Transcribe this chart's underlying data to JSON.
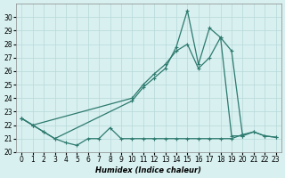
{
  "xlabel": "Humidex (Indice chaleur)",
  "ylim": [
    20,
    31
  ],
  "xlim": [
    -0.5,
    23.5
  ],
  "yticks": [
    20,
    21,
    22,
    23,
    24,
    25,
    26,
    27,
    28,
    29,
    30
  ],
  "xticks": [
    0,
    1,
    2,
    3,
    4,
    5,
    6,
    7,
    8,
    9,
    10,
    11,
    12,
    13,
    14,
    15,
    16,
    17,
    18,
    19,
    20,
    21,
    22,
    23
  ],
  "line_color": "#2d7a6e",
  "bg_color": "#d8f0f0",
  "grid_color": "#b8d8d8",
  "lineA_x": [
    0,
    1,
    2,
    3,
    4,
    5,
    6,
    7,
    8,
    9,
    10,
    11,
    12,
    13,
    14,
    15,
    16,
    17,
    18,
    19,
    20,
    21,
    22,
    23
  ],
  "lineA_y": [
    22.5,
    22.0,
    21.5,
    21.0,
    20.7,
    20.5,
    21.0,
    21.0,
    21.8,
    21.0,
    21.0,
    21.0,
    21.0,
    21.0,
    21.0,
    21.0,
    21.0,
    21.0,
    21.0,
    21.0,
    21.3,
    21.5,
    21.2,
    21.1
  ],
  "lineB_x": [
    0,
    1,
    2,
    3,
    10,
    11,
    12,
    13,
    14,
    15,
    16,
    17,
    18,
    19,
    20,
    21,
    22,
    23
  ],
  "lineB_y": [
    22.5,
    22.0,
    21.5,
    21.0,
    23.8,
    24.8,
    25.5,
    26.2,
    27.8,
    30.5,
    26.5,
    29.2,
    28.5,
    21.2,
    21.2,
    21.5,
    21.2,
    21.1
  ],
  "lineC_x": [
    0,
    1,
    10,
    11,
    12,
    13,
    14,
    15,
    16,
    17,
    18,
    19,
    20
  ],
  "lineC_y": [
    22.5,
    22.0,
    24.0,
    25.0,
    25.8,
    26.5,
    27.5,
    28.0,
    26.2,
    27.0,
    28.5,
    27.5,
    21.2
  ]
}
